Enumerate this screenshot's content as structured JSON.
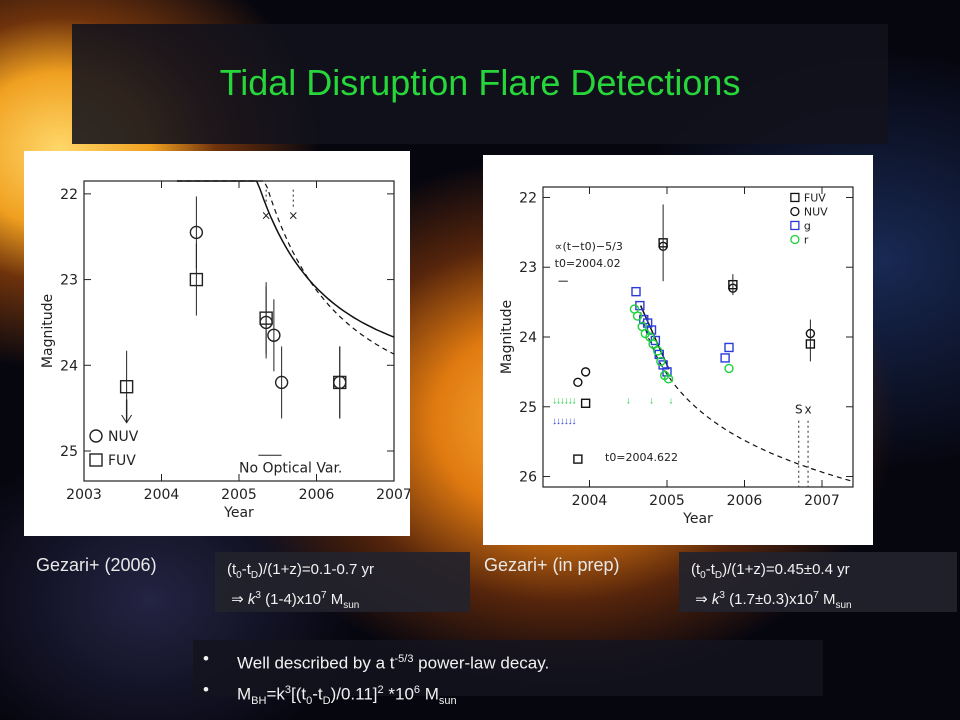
{
  "title": "Tidal Disruption Flare Detections",
  "left_panel": {
    "caption": "Gezari+ (2006)",
    "formula_line1": "(t0-tD)/(1+z)=0.1-0.7 yr",
    "formula_line2": "⇒ k3 (1-4)x107 Msun",
    "chart_data": {
      "type": "scatter",
      "xlabel": "Year",
      "ylabel": "Magnitude",
      "xlim": [
        2003,
        2007
      ],
      "ylim": [
        25.35,
        21.85
      ],
      "xticks": [
        "2003",
        "2004",
        "2005",
        "2006",
        "2007"
      ],
      "yticks": [
        "22",
        "23",
        "24",
        "25"
      ],
      "series": [
        {
          "name": "NUV",
          "marker": "circle",
          "points": [
            [
              2004.45,
              22.45
            ],
            [
              2005.35,
              23.5
            ],
            [
              2005.45,
              23.65
            ],
            [
              2005.55,
              24.2
            ],
            [
              2006.3,
              24.2
            ]
          ]
        },
        {
          "name": "FUV",
          "marker": "square",
          "points": [
            [
              2003.55,
              24.25
            ],
            [
              2004.45,
              23.0
            ],
            [
              2005.35,
              23.45
            ],
            [
              2006.3,
              24.2
            ]
          ]
        }
      ],
      "annotations": [
        "No Optical Var."
      ]
    }
  },
  "right_panel": {
    "caption": "Gezari+ (in prep)",
    "formula_line1": "(t0-tD)/(1+z)=0.45±0.4 yr",
    "formula_line2": "⇒ k3 (1.7±0.3)x107 Msun",
    "chart_data": {
      "type": "scatter",
      "xlabel": "Year",
      "ylabel": "Magnitude",
      "xlim": [
        2003.4,
        2007.4
      ],
      "ylim": [
        26.15,
        21.85
      ],
      "xticks": [
        "2004",
        "2005",
        "2006",
        "2007"
      ],
      "yticks": [
        "22",
        "23",
        "24",
        "25",
        "26"
      ],
      "series": [
        {
          "name": "FUV",
          "color": "#111111",
          "marker": "square",
          "points": [
            [
              2003.85,
              25.75
            ],
            [
              2003.95,
              24.95
            ],
            [
              2004.95,
              22.65
            ],
            [
              2005.85,
              23.25
            ],
            [
              2006.85,
              24.1
            ]
          ]
        },
        {
          "name": "NUV",
          "color": "#111111",
          "marker": "circle",
          "points": [
            [
              2003.85,
              24.65
            ],
            [
              2003.95,
              24.5
            ],
            [
              2004.95,
              22.7
            ],
            [
              2005.85,
              23.3
            ],
            [
              2006.85,
              23.95
            ]
          ]
        },
        {
          "name": "g",
          "color": "#2a3bd8",
          "marker": "square",
          "points": [
            [
              2004.6,
              23.35
            ],
            [
              2004.65,
              23.55
            ],
            [
              2004.7,
              23.75
            ],
            [
              2004.75,
              23.8
            ],
            [
              2004.8,
              23.9
            ],
            [
              2004.85,
              24.05
            ],
            [
              2004.9,
              24.25
            ],
            [
              2004.95,
              24.4
            ],
            [
              2005.0,
              24.5
            ],
            [
              2005.75,
              24.3
            ],
            [
              2005.8,
              24.15
            ]
          ]
        },
        {
          "name": "r",
          "color": "#1bd23a",
          "marker": "circle",
          "points": [
            [
              2004.58,
              23.6
            ],
            [
              2004.62,
              23.7
            ],
            [
              2004.68,
              23.85
            ],
            [
              2004.72,
              23.95
            ],
            [
              2004.78,
              24.0
            ],
            [
              2004.82,
              24.1
            ],
            [
              2004.88,
              24.2
            ],
            [
              2004.92,
              24.35
            ],
            [
              2004.97,
              24.55
            ],
            [
              2005.02,
              24.6
            ],
            [
              2005.8,
              24.45
            ]
          ]
        }
      ],
      "annotations": [
        "∝(t−t0)−5/3",
        "t0=2004.02",
        "t0=2004.622",
        "S",
        "x"
      ]
    }
  },
  "bullets": [
    "Well described by a t-5/3 power-law decay.",
    "MBH=k3[(t0-tD)/0.11]2 *106 Msun"
  ],
  "bullet_symbol": "•"
}
